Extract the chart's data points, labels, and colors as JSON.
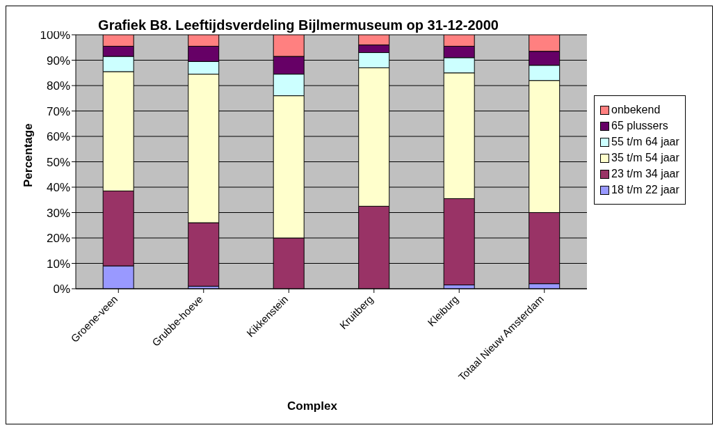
{
  "chart_data": {
    "type": "bar",
    "stacked": true,
    "title": "Grafiek B8. Leeftijdsverdeling Bijlmermuseum op 31-12-2000",
    "xlabel": "Complex",
    "ylabel": "Percentage",
    "categories": [
      "Groene-veen",
      "Grubbe-hoeve",
      "Kikkenstein",
      "Kruitberg",
      "Kleiburg",
      "Totaal Nieuw Amsterdam"
    ],
    "series": [
      {
        "name": "18 t/m 22 jaar",
        "color": "#9999ff",
        "values": [
          9,
          1,
          null,
          null,
          1.5,
          2
        ]
      },
      {
        "name": "23 t/m 34 jaar",
        "color": "#993366",
        "values": [
          29.5,
          25,
          20,
          32.5,
          34,
          28
        ]
      },
      {
        "name": "35 t/m 54 jaar",
        "color": "#ffffcc",
        "values": [
          47,
          58.5,
          56,
          54.5,
          49.5,
          52
        ]
      },
      {
        "name": "55 t/m 64 jaar",
        "color": "#ccffff",
        "values": [
          6,
          5,
          8.5,
          6,
          6,
          6
        ]
      },
      {
        "name": "65 plussers",
        "color": "#660066",
        "values": [
          4,
          6,
          7,
          3,
          4.5,
          5.5
        ]
      },
      {
        "name": "onbekend",
        "color": "#ff8080",
        "values": [
          4.5,
          4.5,
          8.5,
          4,
          4.5,
          6.5
        ]
      }
    ],
    "ylim": [
      0,
      100
    ],
    "yticks": [
      {
        "value": 0,
        "label": "0%"
      },
      {
        "value": 10,
        "label": "10%"
      },
      {
        "value": 20,
        "label": "20%"
      },
      {
        "value": 30,
        "label": "30%"
      },
      {
        "value": 40,
        "label": "40%"
      },
      {
        "value": 50,
        "label": "50%"
      },
      {
        "value": 60,
        "label": "60%"
      },
      {
        "value": 70,
        "label": "70%"
      },
      {
        "value": 80,
        "label": "80%"
      },
      {
        "value": 90,
        "label": "90%"
      },
      {
        "value": 100,
        "label": "100%"
      }
    ],
    "grid": "y",
    "legend": "right"
  }
}
